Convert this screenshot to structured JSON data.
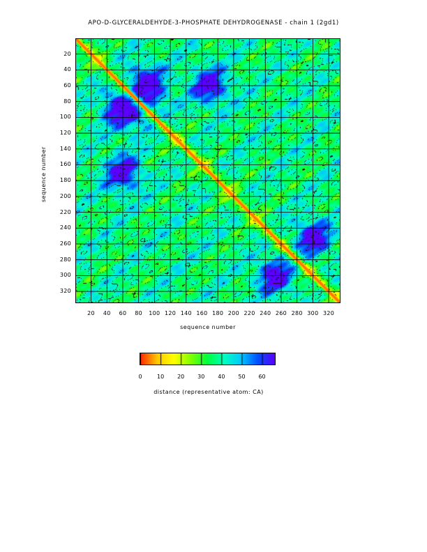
{
  "chart_data": {
    "type": "heatmap",
    "title": "APO-D-GLYCERALDEHYDE-3-PHOSPHATE DEHYDROGENASE  - chain 1 (2gd1)",
    "xlabel": "sequence number",
    "ylabel": "sequence number",
    "xlim": [
      1,
      334
    ],
    "ylim": [
      1,
      334
    ],
    "x_ticks": [
      "20",
      "40",
      "60",
      "80",
      "100",
      "120",
      "140",
      "160",
      "180",
      "200",
      "220",
      "240",
      "260",
      "280",
      "300",
      "320"
    ],
    "y_ticks": [
      "20",
      "40",
      "60",
      "80",
      "100",
      "120",
      "140",
      "160",
      "180",
      "200",
      "220",
      "240",
      "260",
      "280",
      "300",
      "320"
    ],
    "grid": true,
    "colorbar": {
      "title": "distance (representative atom: CA)",
      "ticks": [
        "0",
        "10",
        "20",
        "30",
        "40",
        "50",
        "60"
      ],
      "range": [
        0,
        66
      ],
      "colors": [
        "#ff2a00",
        "#ffc800",
        "#ffff00",
        "#80ff00",
        "#00ff40",
        "#00ffc0",
        "#00c8ff",
        "#0050ff",
        "#5a00ff"
      ]
    }
  }
}
